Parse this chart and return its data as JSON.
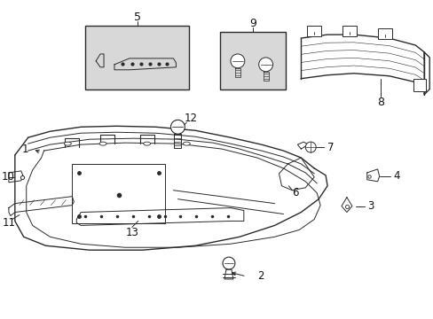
{
  "bg_color": "#ffffff",
  "line_color": "#2a2a2a",
  "label_color": "#111111",
  "box_bg": "#d8d8d8",
  "figsize": [
    4.89,
    3.6
  ],
  "dpi": 100
}
